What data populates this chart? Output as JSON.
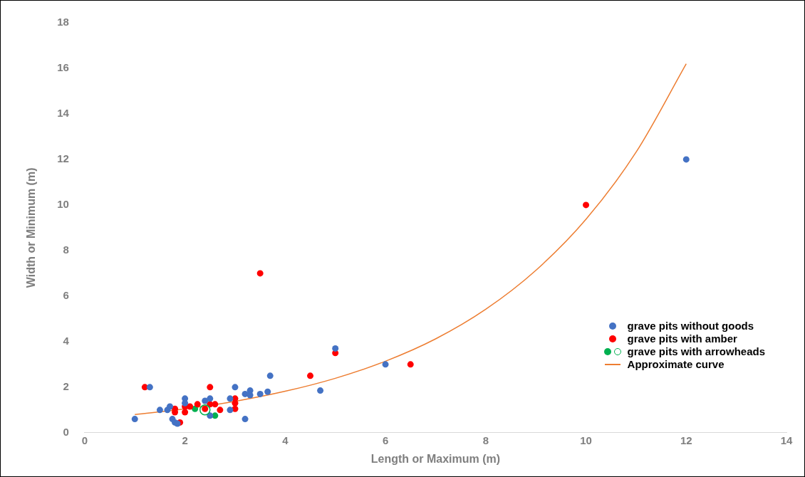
{
  "chart_data": {
    "type": "scatter",
    "xlabel": "Length or Maximum (m)",
    "ylabel": "Width or Minimum (m)",
    "xlim": [
      0,
      14
    ],
    "xticks": [
      0,
      2,
      4,
      6,
      8,
      10,
      12,
      14
    ],
    "ylim": [
      0,
      18
    ],
    "yticks": [
      0,
      2,
      4,
      6,
      8,
      10,
      12,
      14,
      16,
      18
    ],
    "grid": false,
    "legend": "right",
    "marker": "circle",
    "series": [
      {
        "name": "grave pits without goods",
        "color": "#4472c4",
        "x": [
          1.0,
          1.3,
          1.5,
          1.65,
          1.7,
          1.75,
          1.8,
          1.85,
          2.0,
          2.0,
          2.4,
          2.5,
          2.5,
          2.9,
          2.9,
          3.0,
          3.2,
          3.2,
          3.3,
          3.3,
          3.5,
          3.65,
          3.7,
          4.7,
          5.0,
          6.0,
          12.0
        ],
        "values": [
          0.6,
          2.0,
          1.0,
          1.0,
          1.15,
          0.6,
          0.45,
          0.4,
          1.5,
          1.3,
          1.4,
          1.5,
          0.75,
          1.5,
          1.0,
          2.0,
          0.6,
          1.7,
          1.85,
          1.65,
          1.7,
          1.8,
          2.5,
          1.85,
          3.7,
          3.0,
          12.0
        ]
      },
      {
        "name": "grave pits with amber",
        "color": "#ff0000",
        "x": [
          1.2,
          1.8,
          1.8,
          1.9,
          2.0,
          2.0,
          2.1,
          2.25,
          2.4,
          2.5,
          2.5,
          2.6,
          2.7,
          3.0,
          3.0,
          3.0,
          3.5,
          4.5,
          5.0,
          6.5,
          10.0
        ],
        "values": [
          2.0,
          1.05,
          0.9,
          0.45,
          1.15,
          0.9,
          1.15,
          1.25,
          1.05,
          2.0,
          1.25,
          1.25,
          1.0,
          1.5,
          1.3,
          1.05,
          7.0,
          2.5,
          3.5,
          3.0,
          10.0
        ]
      },
      {
        "name": "grave pits with arrowheads",
        "color": "#00b050",
        "x": [
          2.2,
          2.6
        ],
        "values": [
          1.05,
          0.75
        ]
      },
      {
        "color": "#00b050",
        "x": [
          2.4
        ],
        "values": [
          1.0
        ]
      },
      {
        "name": "Approximate curve",
        "type": "line",
        "color": "#ed7d31",
        "marker": "none",
        "x": [
          1,
          2,
          3,
          4,
          5,
          6,
          7,
          8,
          9,
          10,
          11,
          12
        ],
        "values": [
          0.8,
          1.05,
          1.38,
          1.82,
          2.39,
          3.14,
          4.12,
          5.42,
          7.13,
          9.37,
          12.32,
          16.2
        ]
      }
    ]
  }
}
